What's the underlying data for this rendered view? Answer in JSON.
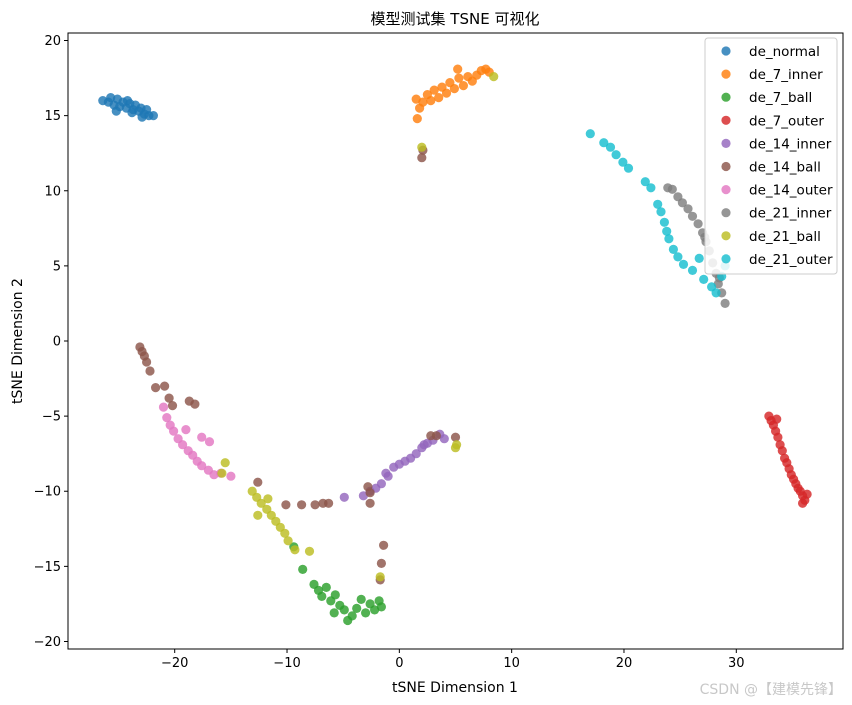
{
  "chart_data": {
    "type": "scatter",
    "title": "模型测试集 TSNE 可视化",
    "xlabel": "tSNE Dimension 1",
    "ylabel": "tSNE Dimension 2",
    "xlim": [
      -29.5,
      39.5
    ],
    "ylim": [
      -20.5,
      20.5
    ],
    "xticks": [
      -20,
      -10,
      0,
      10,
      20,
      30
    ],
    "yticks": [
      -20,
      -15,
      -10,
      -5,
      0,
      5,
      10,
      15,
      20
    ],
    "grid": false,
    "legend_position": "top-right",
    "series": [
      {
        "name": "de_normal",
        "color": "#1f77b4",
        "points": [
          [
            -26.4,
            16.0
          ],
          [
            -25.9,
            15.9
          ],
          [
            -25.7,
            16.2
          ],
          [
            -25.4,
            15.7
          ],
          [
            -25.1,
            16.1
          ],
          [
            -24.9,
            15.6
          ],
          [
            -24.6,
            15.9
          ],
          [
            -24.3,
            15.5
          ],
          [
            -24.0,
            15.8
          ],
          [
            -23.7,
            15.4
          ],
          [
            -23.5,
            15.7
          ],
          [
            -23.2,
            15.3
          ],
          [
            -23.0,
            15.5
          ],
          [
            -22.7,
            15.1
          ],
          [
            -22.5,
            15.4
          ],
          [
            -22.3,
            15.0
          ],
          [
            -21.9,
            15.0
          ],
          [
            -25.2,
            15.3
          ],
          [
            -24.2,
            16.0
          ],
          [
            -23.8,
            15.2
          ],
          [
            -22.9,
            14.9
          ]
        ]
      },
      {
        "name": "de_7_inner",
        "color": "#ff7f0e",
        "points": [
          [
            1.5,
            16.1
          ],
          [
            1.8,
            15.5
          ],
          [
            2.1,
            15.9
          ],
          [
            2.5,
            16.4
          ],
          [
            2.8,
            16.0
          ],
          [
            3.1,
            16.7
          ],
          [
            3.5,
            16.2
          ],
          [
            3.8,
            16.9
          ],
          [
            4.2,
            16.5
          ],
          [
            4.5,
            17.2
          ],
          [
            4.9,
            16.8
          ],
          [
            5.3,
            17.5
          ],
          [
            5.7,
            17.0
          ],
          [
            6.1,
            17.6
          ],
          [
            6.5,
            17.3
          ],
          [
            6.9,
            17.7
          ],
          [
            7.3,
            18.0
          ],
          [
            7.7,
            18.1
          ],
          [
            8.0,
            17.9
          ],
          [
            1.6,
            14.8
          ],
          [
            5.2,
            18.1
          ]
        ]
      },
      {
        "name": "de_7_ball",
        "color": "#2ca02c",
        "points": [
          [
            -9.4,
            -13.7
          ],
          [
            -8.6,
            -15.2
          ],
          [
            -7.6,
            -16.2
          ],
          [
            -7.2,
            -16.6
          ],
          [
            -6.9,
            -17.0
          ],
          [
            -6.5,
            -16.4
          ],
          [
            -6.1,
            -17.3
          ],
          [
            -5.7,
            -16.9
          ],
          [
            -5.3,
            -17.6
          ],
          [
            -4.9,
            -17.9
          ],
          [
            -4.6,
            -18.6
          ],
          [
            -4.2,
            -18.3
          ],
          [
            -3.8,
            -17.8
          ],
          [
            -3.4,
            -17.2
          ],
          [
            -3.0,
            -18.1
          ],
          [
            -2.6,
            -17.5
          ],
          [
            -2.2,
            -17.9
          ],
          [
            -1.8,
            -17.3
          ],
          [
            -1.6,
            -17.7
          ],
          [
            -5.8,
            -18.1
          ]
        ]
      },
      {
        "name": "de_7_outer",
        "color": "#d62728",
        "points": [
          [
            32.9,
            -5.0
          ],
          [
            33.1,
            -5.3
          ],
          [
            33.3,
            -5.6
          ],
          [
            33.5,
            -6.0
          ],
          [
            33.7,
            -6.4
          ],
          [
            33.9,
            -6.9
          ],
          [
            34.1,
            -7.3
          ],
          [
            34.3,
            -7.8
          ],
          [
            34.5,
            -8.1
          ],
          [
            34.7,
            -8.5
          ],
          [
            34.9,
            -8.9
          ],
          [
            35.1,
            -9.2
          ],
          [
            35.3,
            -9.5
          ],
          [
            35.5,
            -9.8
          ],
          [
            35.7,
            -10.0
          ],
          [
            35.9,
            -10.3
          ],
          [
            36.1,
            -10.6
          ],
          [
            36.3,
            -10.2
          ],
          [
            35.9,
            -10.8
          ],
          [
            33.6,
            -5.2
          ]
        ]
      },
      {
        "name": "de_14_inner",
        "color": "#9467bd",
        "points": [
          [
            -4.9,
            -10.4
          ],
          [
            -3.2,
            -10.3
          ],
          [
            -2.6,
            -10.0
          ],
          [
            -2.1,
            -9.8
          ],
          [
            -1.6,
            -9.5
          ],
          [
            -1.0,
            -9.0
          ],
          [
            -0.5,
            -8.4
          ],
          [
            0.0,
            -8.2
          ],
          [
            0.5,
            -8.0
          ],
          [
            1.0,
            -7.8
          ],
          [
            1.5,
            -7.5
          ],
          [
            2.0,
            -7.1
          ],
          [
            2.5,
            -6.8
          ],
          [
            3.0,
            -6.6
          ],
          [
            3.6,
            -6.2
          ],
          [
            4.0,
            -6.5
          ],
          [
            2.2,
            -6.9
          ],
          [
            -1.2,
            -8.8
          ]
        ]
      },
      {
        "name": "de_14_ball",
        "color": "#8c564b",
        "points": [
          [
            -23.1,
            -0.4
          ],
          [
            -22.9,
            -0.7
          ],
          [
            -22.7,
            -1.0
          ],
          [
            -22.5,
            -1.4
          ],
          [
            -22.2,
            -2.0
          ],
          [
            -21.7,
            -3.1
          ],
          [
            -20.9,
            -3.0
          ],
          [
            -20.5,
            -3.8
          ],
          [
            -20.2,
            -4.3
          ],
          [
            -18.7,
            -4.0
          ],
          [
            -18.2,
            -4.2
          ],
          [
            -10.1,
            -10.9
          ],
          [
            -8.7,
            -10.9
          ],
          [
            -7.5,
            -10.9
          ],
          [
            -6.8,
            -10.8
          ],
          [
            -6.3,
            -10.8
          ],
          [
            -2.6,
            -10.1
          ],
          [
            -2.8,
            -9.7
          ],
          [
            -2.6,
            -10.8
          ],
          [
            -1.4,
            -13.6
          ],
          [
            -1.6,
            -14.8
          ],
          [
            -1.7,
            -15.9
          ],
          [
            2.1,
            12.7
          ],
          [
            2.0,
            12.2
          ],
          [
            2.8,
            -6.3
          ],
          [
            3.3,
            -6.3
          ],
          [
            5.0,
            -6.4
          ],
          [
            -12.6,
            -9.4
          ]
        ]
      },
      {
        "name": "de_14_outer",
        "color": "#e377c2",
        "points": [
          [
            -21.0,
            -4.4
          ],
          [
            -20.7,
            -5.1
          ],
          [
            -20.4,
            -5.6
          ],
          [
            -20.1,
            -6.0
          ],
          [
            -19.7,
            -6.5
          ],
          [
            -19.3,
            -6.9
          ],
          [
            -18.8,
            -7.3
          ],
          [
            -18.4,
            -7.6
          ],
          [
            -18.0,
            -8.0
          ],
          [
            -17.6,
            -8.3
          ],
          [
            -17.0,
            -8.6
          ],
          [
            -16.5,
            -8.9
          ],
          [
            -15.9,
            -8.8
          ],
          [
            -15.0,
            -9.0
          ],
          [
            -17.6,
            -6.4
          ],
          [
            -19.0,
            -5.9
          ],
          [
            -16.9,
            -6.7
          ]
        ]
      },
      {
        "name": "de_21_inner",
        "color": "#7f7f7f",
        "points": [
          [
            23.9,
            10.2
          ],
          [
            24.3,
            10.1
          ],
          [
            24.8,
            9.6
          ],
          [
            25.2,
            9.2
          ],
          [
            25.7,
            8.8
          ],
          [
            26.1,
            8.3
          ],
          [
            26.6,
            7.8
          ],
          [
            27.0,
            7.2
          ],
          [
            27.3,
            6.6
          ],
          [
            27.6,
            6.0
          ],
          [
            27.9,
            5.2
          ],
          [
            28.2,
            4.5
          ],
          [
            28.4,
            3.8
          ],
          [
            28.7,
            3.2
          ],
          [
            29.0,
            2.5
          ],
          [
            27.2,
            6.9
          ],
          [
            28.5,
            4.2
          ]
        ]
      },
      {
        "name": "de_21_ball",
        "color": "#bcbd22",
        "points": [
          [
            2.0,
            12.9
          ],
          [
            8.4,
            17.6
          ],
          [
            -15.5,
            -8.1
          ],
          [
            -15.8,
            -8.8
          ],
          [
            -13.1,
            -10.0
          ],
          [
            -12.7,
            -10.4
          ],
          [
            -12.3,
            -10.8
          ],
          [
            -11.8,
            -11.2
          ],
          [
            -11.4,
            -11.6
          ],
          [
            -11.0,
            -12.0
          ],
          [
            -10.6,
            -12.4
          ],
          [
            -10.2,
            -12.8
          ],
          [
            -9.9,
            -13.3
          ],
          [
            -9.3,
            -13.9
          ],
          [
            -8.0,
            -14.0
          ],
          [
            -12.6,
            -11.6
          ],
          [
            -11.7,
            -10.5
          ],
          [
            5.1,
            -6.9
          ],
          [
            5.0,
            -7.1
          ],
          [
            -1.7,
            -15.7
          ]
        ]
      },
      {
        "name": "de_21_outer",
        "color": "#17becf",
        "points": [
          [
            17.0,
            13.8
          ],
          [
            18.2,
            13.2
          ],
          [
            18.8,
            12.9
          ],
          [
            19.3,
            12.4
          ],
          [
            19.9,
            11.9
          ],
          [
            20.4,
            11.5
          ],
          [
            21.9,
            10.6
          ],
          [
            22.4,
            10.2
          ],
          [
            23.0,
            9.1
          ],
          [
            23.3,
            8.6
          ],
          [
            23.6,
            7.9
          ],
          [
            23.8,
            7.3
          ],
          [
            24.0,
            6.8
          ],
          [
            24.4,
            6.1
          ],
          [
            24.8,
            5.6
          ],
          [
            25.3,
            5.1
          ],
          [
            26.1,
            4.7
          ],
          [
            26.7,
            5.5
          ],
          [
            27.1,
            4.1
          ],
          [
            27.8,
            3.6
          ],
          [
            28.2,
            3.2
          ],
          [
            28.7,
            4.3
          ],
          [
            29.0,
            5.0
          ]
        ]
      }
    ]
  }
}
